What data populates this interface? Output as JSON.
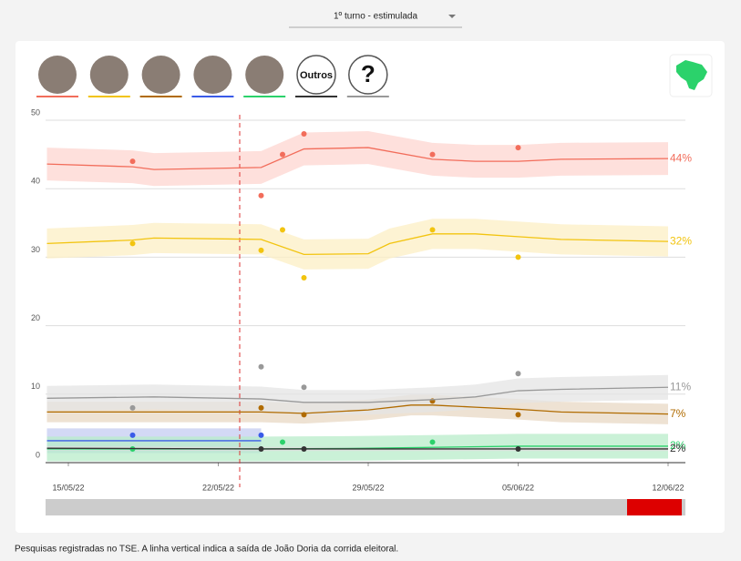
{
  "dropdown": "1º turno - estimulada",
  "footnote": "Pesquisas registradas no TSE. A linha vertical indica a saída de João Doria da corrida eleitoral.",
  "chart_data": {
    "type": "line",
    "xlim": [
      "2022-05-14",
      "2022-06-12"
    ],
    "xticks": [
      {
        "value": "2022-05-15",
        "label": "15/05/22"
      },
      {
        "value": "2022-05-22",
        "label": "22/05/22"
      },
      {
        "value": "2022-05-29",
        "label": "29/05/22"
      },
      {
        "value": "2022-06-05",
        "label": "05/06/22"
      },
      {
        "value": "2022-06-12",
        "label": "12/06/22"
      }
    ],
    "ylim": [
      0,
      50
    ],
    "yticks": [
      0,
      10,
      20,
      30,
      40,
      50
    ],
    "grid": true,
    "vline": "2022-05-23",
    "series": [
      {
        "color": "#f26d5b",
        "band_color": "#fdd6d0",
        "error": 2.4,
        "label": "44%",
        "x": [
          "2022-05-14",
          "2022-05-18",
          "2022-05-19",
          "2022-05-24",
          "2022-05-26",
          "2022-05-29",
          "2022-06-01",
          "2022-06-03",
          "2022-06-05",
          "2022-06-07",
          "2022-06-12"
        ],
        "values": [
          43.6,
          43.2,
          42.8,
          43.1,
          45.8,
          46.0,
          44.3,
          44.0,
          44.0,
          44.3,
          44.4
        ],
        "polls": {
          "x": [
            "2022-05-18",
            "2022-05-24",
            "2022-05-25",
            "2022-05-26",
            "2022-06-01",
            "2022-06-05"
          ],
          "values": [
            44,
            39,
            45,
            48,
            45,
            46
          ]
        }
      },
      {
        "color": "#f2c40f",
        "band_color": "#fcefc4",
        "error": 2.2,
        "label": "32%",
        "x": [
          "2022-05-14",
          "2022-05-18",
          "2022-05-19",
          "2022-05-24",
          "2022-05-26",
          "2022-05-29",
          "2022-05-30",
          "2022-06-01",
          "2022-06-03",
          "2022-06-05",
          "2022-06-07",
          "2022-06-12"
        ],
        "values": [
          32.0,
          32.5,
          32.8,
          32.6,
          30.4,
          30.5,
          32.0,
          33.4,
          33.4,
          33.0,
          32.6,
          32.3
        ],
        "polls": {
          "x": [
            "2022-05-18",
            "2022-05-24",
            "2022-05-25",
            "2022-05-26",
            "2022-06-01",
            "2022-06-05"
          ],
          "values": [
            32,
            31,
            34,
            27,
            34,
            30
          ]
        }
      },
      {
        "color": "#b06b00",
        "band_color": "#e8d8c4",
        "error": 1.5,
        "label": "7%",
        "x": [
          "2022-05-14",
          "2022-05-24",
          "2022-05-26",
          "2022-05-29",
          "2022-05-31",
          "2022-06-01",
          "2022-06-03",
          "2022-06-05",
          "2022-06-07",
          "2022-06-12"
        ],
        "values": [
          7.4,
          7.4,
          7.2,
          7.7,
          8.4,
          8.4,
          8.1,
          7.8,
          7.4,
          7.1
        ],
        "polls": {
          "x": [
            "2022-05-24",
            "2022-05-26",
            "2022-06-01",
            "2022-06-05"
          ],
          "values": [
            8,
            7,
            9,
            7
          ]
        }
      },
      {
        "color": "#3a5be8",
        "band_color": "#c4ccf2",
        "error": 1.8,
        "x": [
          "2022-05-14",
          "2022-05-24"
        ],
        "values": [
          3.2,
          3.2
        ],
        "polls": {
          "x": [
            "2022-05-18",
            "2022-05-24"
          ],
          "values": [
            4,
            4
          ]
        }
      },
      {
        "color": "#2bd26b",
        "band_color": "#b8ecc9",
        "error": 1.8,
        "label": "2%",
        "x": [
          "2022-05-14",
          "2022-05-24",
          "2022-05-29",
          "2022-06-05",
          "2022-06-12"
        ],
        "values": [
          2.0,
          2.0,
          2.1,
          2.4,
          2.4
        ],
        "polls": {
          "x": [
            "2022-05-18",
            "2022-05-25",
            "2022-06-01"
          ],
          "values": [
            2,
            3,
            3
          ]
        }
      },
      {
        "name": "Outros",
        "color": "#333333",
        "band_color": "#dddddd",
        "error": 0.3,
        "label": "2%",
        "x": [
          "2022-05-14",
          "2022-05-24",
          "2022-06-12"
        ],
        "values": [
          2.1,
          2.0,
          2.0
        ],
        "polls": {
          "x": [
            "2022-05-24",
            "2022-05-26",
            "2022-06-05"
          ],
          "values": [
            2,
            2,
            2
          ]
        }
      },
      {
        "name": "?",
        "color": "#999999",
        "band_color": "#e4e4e4",
        "error": 1.8,
        "label": "11%",
        "x": [
          "2022-05-14",
          "2022-05-19",
          "2022-05-24",
          "2022-05-26",
          "2022-05-29",
          "2022-06-01",
          "2022-06-03",
          "2022-06-05",
          "2022-06-07",
          "2022-06-12"
        ],
        "values": [
          9.4,
          9.6,
          9.3,
          8.8,
          8.8,
          9.2,
          9.6,
          10.5,
          10.7,
          11.0
        ],
        "polls": {
          "x": [
            "2022-05-18",
            "2022-05-24",
            "2022-05-26",
            "2022-06-05"
          ],
          "values": [
            8,
            14,
            11,
            13
          ]
        }
      }
    ]
  }
}
